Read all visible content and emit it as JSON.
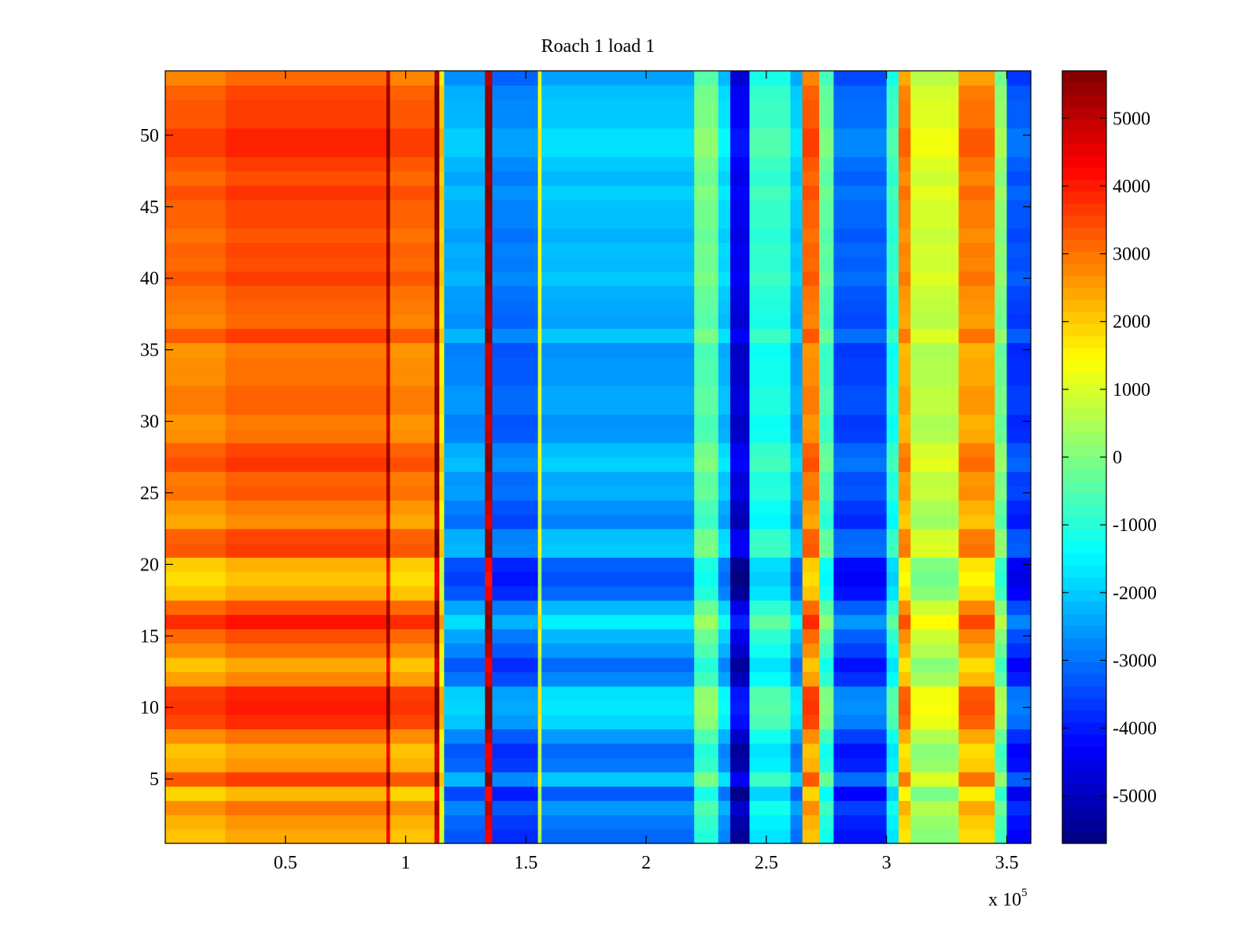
{
  "chart_data": {
    "type": "heatmap",
    "title": "Roach 1 load 1",
    "xlabel": "",
    "ylabel": "",
    "x_scale_label": "x 10",
    "x_scale_exponent": "5",
    "xlim": [
      0,
      3.6
    ],
    "ylim": [
      0.5,
      54.5
    ],
    "x_ticks": [
      0.5,
      1,
      1.5,
      2,
      2.5,
      3,
      3.5
    ],
    "x_tick_labels": [
      "0.5",
      "1",
      "1.5",
      "2",
      "2.5",
      "3",
      "3.5"
    ],
    "y_ticks": [
      5,
      10,
      15,
      20,
      25,
      30,
      35,
      40,
      45,
      50
    ],
    "y_tick_labels": [
      "5",
      "10",
      "15",
      "20",
      "25",
      "30",
      "35",
      "40",
      "45",
      "50"
    ],
    "rows": 54,
    "colormap": "jet",
    "colorbar": {
      "clim": [
        -5700,
        5700
      ],
      "ticks": [
        5000,
        4000,
        3000,
        2000,
        1000,
        0,
        -1000,
        -2000,
        -3000,
        -4000,
        -5000
      ],
      "tick_labels": [
        "5000",
        "4000",
        "3000",
        "2000",
        "1000",
        "0",
        "-1000",
        "-2000",
        "-3000",
        "-4000",
        "-5000"
      ]
    },
    "column_profile": [
      {
        "x0": 0.0,
        "x1": 0.25,
        "value": 3000
      },
      {
        "x0": 0.25,
        "x1": 0.92,
        "value": 3300
      },
      {
        "x0": 0.92,
        "x1": 0.935,
        "value": 5200
      },
      {
        "x0": 0.935,
        "x1": 1.12,
        "value": 3000
      },
      {
        "x0": 1.12,
        "x1": 1.14,
        "value": 5500
      },
      {
        "x0": 1.14,
        "x1": 1.16,
        "value": 1800
      },
      {
        "x0": 1.16,
        "x1": 1.33,
        "value": -2500
      },
      {
        "x0": 1.33,
        "x1": 1.36,
        "value": 5300
      },
      {
        "x0": 1.36,
        "x1": 1.55,
        "value": -3000
      },
      {
        "x0": 1.55,
        "x1": 1.565,
        "value": 1200
      },
      {
        "x0": 1.565,
        "x1": 2.2,
        "value": -2300
      },
      {
        "x0": 2.2,
        "x1": 2.3,
        "value": -300
      },
      {
        "x0": 2.3,
        "x1": 2.35,
        "value": -2000
      },
      {
        "x0": 2.35,
        "x1": 2.43,
        "value": -4600
      },
      {
        "x0": 2.43,
        "x1": 2.6,
        "value": -1000
      },
      {
        "x0": 2.6,
        "x1": 2.65,
        "value": -2200
      },
      {
        "x0": 2.65,
        "x1": 2.72,
        "value": 3000
      },
      {
        "x0": 2.72,
        "x1": 2.78,
        "value": -500
      },
      {
        "x0": 2.78,
        "x1": 3.0,
        "value": -3300
      },
      {
        "x0": 3.0,
        "x1": 3.05,
        "value": -1000
      },
      {
        "x0": 3.05,
        "x1": 3.1,
        "value": 2600
      },
      {
        "x0": 3.1,
        "x1": 3.3,
        "value": 800
      },
      {
        "x0": 3.3,
        "x1": 3.45,
        "value": 2700
      },
      {
        "x0": 3.45,
        "x1": 3.5,
        "value": 0
      },
      {
        "x0": 3.5,
        "x1": 3.6,
        "value": -3500
      }
    ],
    "row_modulation": [
      -900,
      -700,
      -300,
      -1100,
      300,
      -700,
      -900,
      -300,
      500,
      700,
      600,
      -500,
      -900,
      -300,
      100,
      800,
      100,
      -900,
      -1200,
      -1000,
      300,
      200,
      -600,
      -400,
      0,
      -100,
      400,
      200,
      -300,
      -400,
      -100,
      -100,
      -300,
      -300,
      -400,
      300,
      -200,
      -100,
      0,
      300,
      100,
      200,
      0,
      200,
      200,
      400,
      100,
      300,
      600,
      600,
      300,
      300,
      200,
      -200
    ]
  }
}
